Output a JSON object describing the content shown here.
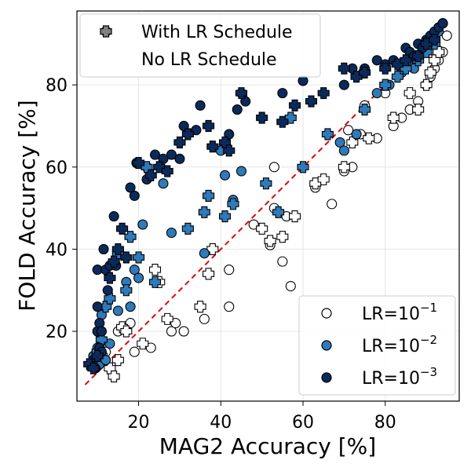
{
  "chart_data": {
    "type": "scatter",
    "xlabel": "MAG2 Accuracy [%]",
    "ylabel": "FOLD Accuracy [%]",
    "xlim": [
      5,
      98
    ],
    "ylim": [
      3,
      98
    ],
    "xticks": [
      20,
      40,
      60,
      80
    ],
    "yticks": [
      20,
      40,
      60,
      80
    ],
    "grid": true,
    "reference_line": {
      "type": "y=x",
      "color": "#e60000",
      "style": "dashed",
      "from": 7,
      "to": 95
    },
    "legend_schedule": {
      "placement": "top-left",
      "entries": [
        {
          "label": "With LR Schedule",
          "marker": "circle",
          "color": "#808080"
        },
        {
          "label": "No LR Schedule",
          "marker": "plus",
          "color": "#808080"
        }
      ]
    },
    "legend_lr": {
      "placement": "bottom-right",
      "entries": [
        {
          "label_base": "LR=10",
          "exponent": "−1",
          "color": "#ffffff"
        },
        {
          "label_base": "LR=10",
          "exponent": "−2",
          "color": "#2f7ab8"
        },
        {
          "label_base": "LR=10",
          "exponent": "−3",
          "color": "#0b2a5a"
        }
      ]
    },
    "series": [
      {
        "name": "LR=1e-3 with schedule",
        "lr": "1e-3",
        "marker": "circle",
        "color": "#0b2a5a",
        "points": [
          [
            8.5,
            12
          ],
          [
            9,
            13
          ],
          [
            9.5,
            11
          ],
          [
            10,
            20
          ],
          [
            10,
            26
          ],
          [
            10.5,
            16
          ],
          [
            10.5,
            22
          ],
          [
            11,
            15
          ],
          [
            11,
            20
          ],
          [
            10,
            35
          ],
          [
            11.5,
            40
          ],
          [
            12,
            35
          ],
          [
            12.5,
            30
          ],
          [
            13,
            36
          ],
          [
            14,
            48
          ],
          [
            14.5,
            36
          ],
          [
            18,
            55
          ],
          [
            19,
            53
          ],
          [
            19.5,
            61
          ],
          [
            22,
            57
          ],
          [
            24,
            63
          ],
          [
            26,
            62
          ],
          [
            28,
            63
          ],
          [
            30,
            62
          ],
          [
            31,
            70
          ],
          [
            34,
            69
          ],
          [
            35,
            75
          ],
          [
            42,
            68
          ],
          [
            44,
            74
          ],
          [
            45,
            78
          ],
          [
            46,
            76
          ],
          [
            55,
            78
          ],
          [
            60,
            81
          ],
          [
            70,
            80
          ],
          [
            72,
            84
          ],
          [
            75,
            84
          ],
          [
            78,
            86
          ],
          [
            80,
            85
          ],
          [
            82,
            86
          ],
          [
            85,
            89
          ],
          [
            86,
            88
          ],
          [
            87,
            87
          ],
          [
            88,
            90
          ],
          [
            89,
            89
          ],
          [
            90,
            91
          ],
          [
            91,
            92
          ],
          [
            92,
            93
          ],
          [
            93,
            94
          ],
          [
            94,
            95
          ]
        ]
      },
      {
        "name": "LR=1e-3 no schedule",
        "lr": "1e-3",
        "marker": "plus",
        "color": "#0b2a5a",
        "points": [
          [
            8,
            12
          ],
          [
            9,
            11
          ],
          [
            10,
            14
          ],
          [
            13,
            33
          ],
          [
            14,
            37
          ],
          [
            15,
            40
          ],
          [
            16,
            45
          ],
          [
            17,
            38
          ],
          [
            20,
            61
          ],
          [
            23,
            58
          ],
          [
            25,
            60
          ],
          [
            27,
            59
          ],
          [
            30,
            66
          ],
          [
            32,
            68
          ],
          [
            37,
            70
          ],
          [
            38,
            65
          ],
          [
            41,
            66
          ],
          [
            42,
            64
          ],
          [
            45,
            78
          ],
          [
            50,
            72
          ],
          [
            55,
            71
          ],
          [
            58,
            75
          ],
          [
            62,
            76
          ],
          [
            65,
            78
          ],
          [
            70,
            84
          ],
          [
            73,
            82
          ],
          [
            75,
            83
          ],
          [
            80,
            84
          ],
          [
            83,
            85
          ],
          [
            85,
            86
          ],
          [
            88,
            87
          ],
          [
            90,
            90
          ],
          [
            92,
            91
          ]
        ]
      },
      {
        "name": "LR=1e-2 with schedule",
        "lr": "1e-2",
        "marker": "circle",
        "color": "#2f7ab8",
        "points": [
          [
            9,
            14
          ],
          [
            10,
            16
          ],
          [
            10.5,
            12
          ],
          [
            11,
            24
          ],
          [
            12,
            13
          ],
          [
            13,
            17
          ],
          [
            15,
            25
          ],
          [
            17,
            32
          ],
          [
            18,
            26
          ],
          [
            19,
            35
          ],
          [
            20,
            33
          ],
          [
            21,
            46
          ],
          [
            22,
            60
          ],
          [
            26,
            56
          ],
          [
            28,
            44
          ],
          [
            36,
            39
          ],
          [
            40,
            64
          ],
          [
            41,
            58
          ],
          [
            43,
            52
          ],
          [
            45,
            59
          ],
          [
            69,
            66
          ],
          [
            70,
            64
          ],
          [
            73,
            68
          ],
          [
            78,
            78
          ],
          [
            81,
            80
          ],
          [
            84,
            83
          ],
          [
            85,
            85
          ],
          [
            86,
            86
          ],
          [
            87,
            84
          ],
          [
            88,
            87
          ],
          [
            90,
            89
          ],
          [
            91,
            91
          ],
          [
            92,
            92
          ],
          [
            93,
            93
          ],
          [
            94,
            95
          ]
        ]
      },
      {
        "name": "LR=1e-2 no schedule",
        "lr": "1e-2",
        "marker": "plus",
        "color": "#2f7ab8",
        "points": [
          [
            10,
            15
          ],
          [
            11,
            18
          ],
          [
            12,
            26
          ],
          [
            13,
            28
          ],
          [
            15,
            39
          ],
          [
            17,
            30
          ],
          [
            18,
            43
          ],
          [
            20,
            38
          ],
          [
            22,
            60
          ],
          [
            24,
            32
          ],
          [
            32,
            45
          ],
          [
            36,
            49
          ],
          [
            37,
            53
          ],
          [
            41,
            48
          ],
          [
            43,
            51
          ],
          [
            51,
            56
          ],
          [
            54,
            49
          ],
          [
            57,
            72
          ],
          [
            60,
            60
          ],
          [
            66,
            68
          ],
          [
            75,
            74
          ],
          [
            80,
            80
          ],
          [
            83,
            82
          ],
          [
            85,
            84
          ],
          [
            88,
            86
          ],
          [
            90,
            88
          ],
          [
            92,
            90
          ]
        ]
      },
      {
        "name": "LR=1e-1 with schedule",
        "lr": "1e-1",
        "marker": "circle",
        "color": "#ffffff",
        "points": [
          [
            12,
            15
          ],
          [
            15,
            20
          ],
          [
            18,
            22
          ],
          [
            19,
            15
          ],
          [
            23,
            16
          ],
          [
            28,
            20
          ],
          [
            29,
            22
          ],
          [
            31,
            20
          ],
          [
            36,
            23
          ],
          [
            42,
            35
          ],
          [
            42,
            26
          ],
          [
            48,
            46
          ],
          [
            52,
            41
          ],
          [
            53,
            50
          ],
          [
            53,
            60
          ],
          [
            55,
            37
          ],
          [
            56,
            48
          ],
          [
            57,
            31
          ],
          [
            63,
            55
          ],
          [
            67,
            51
          ],
          [
            70,
            59
          ],
          [
            71,
            69
          ],
          [
            72,
            60
          ],
          [
            74,
            68
          ],
          [
            75,
            75
          ],
          [
            78,
            67
          ],
          [
            80,
            78
          ],
          [
            82,
            70
          ],
          [
            84,
            72
          ],
          [
            86,
            74
          ],
          [
            88,
            76
          ],
          [
            90,
            80
          ],
          [
            91,
            82
          ],
          [
            92,
            84
          ],
          [
            93,
            86
          ],
          [
            94,
            88
          ],
          [
            95,
            92
          ]
        ]
      },
      {
        "name": "LR=1e-1 no schedule",
        "lr": "1e-1",
        "marker": "plus",
        "color": "#ffffff",
        "points": [
          [
            11,
            14
          ],
          [
            13,
            11
          ],
          [
            14,
            9
          ],
          [
            15,
            13
          ],
          [
            16,
            21
          ],
          [
            17,
            20
          ],
          [
            21,
            17
          ],
          [
            24,
            35
          ],
          [
            25,
            32
          ],
          [
            27,
            23
          ],
          [
            35,
            26
          ],
          [
            37,
            34
          ],
          [
            38,
            40
          ],
          [
            50,
            45
          ],
          [
            52,
            42
          ],
          [
            55,
            43
          ],
          [
            58,
            48
          ],
          [
            63,
            56
          ],
          [
            65,
            57
          ],
          [
            70,
            60
          ],
          [
            72,
            66
          ],
          [
            76,
            67
          ],
          [
            82,
            72
          ],
          [
            86,
            78
          ],
          [
            88,
            74
          ],
          [
            90,
            80
          ],
          [
            91,
            83
          ],
          [
            92,
            86
          ],
          [
            93,
            88
          ]
        ]
      }
    ]
  }
}
